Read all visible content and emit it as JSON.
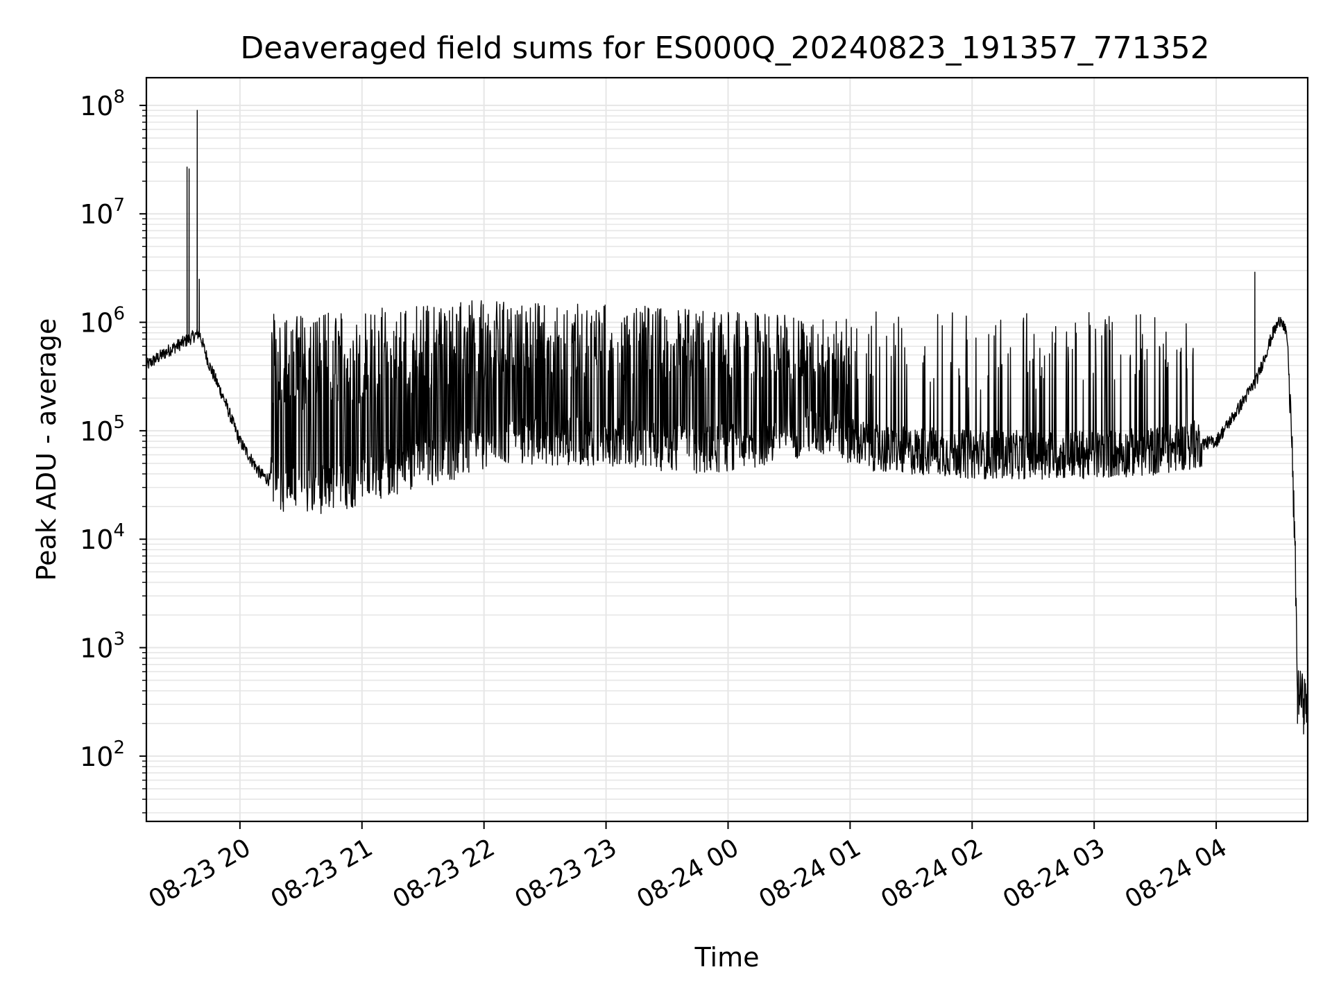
{
  "chart_data": {
    "type": "line",
    "title": "Deaveraged field sums for ES000Q_20240823_191357_771352",
    "xlabel": "Time",
    "ylabel": "Peak ADU - average",
    "yscale": "log",
    "ylim": [
      25,
      180000000
    ],
    "xlim": [
      "2024-08-23 19:14",
      "2024-08-24 04:45"
    ],
    "grid": "on",
    "legend": "none",
    "line_color": "#000000",
    "x_ticks": [
      {
        "t": "2024-08-23 20:00",
        "label": "08-23 20"
      },
      {
        "t": "2024-08-23 21:00",
        "label": "08-23 21"
      },
      {
        "t": "2024-08-23 22:00",
        "label": "08-23 22"
      },
      {
        "t": "2024-08-23 23:00",
        "label": "08-23 23"
      },
      {
        "t": "2024-08-24 00:00",
        "label": "08-24 00"
      },
      {
        "t": "2024-08-24 01:00",
        "label": "08-24 01"
      },
      {
        "t": "2024-08-24 02:00",
        "label": "08-24 02"
      },
      {
        "t": "2024-08-24 03:00",
        "label": "08-24 03"
      },
      {
        "t": "2024-08-24 04:00",
        "label": "08-24 04"
      }
    ],
    "y_ticks": [
      {
        "value": 100,
        "base": "10",
        "exp": "2"
      },
      {
        "value": 1000,
        "base": "10",
        "exp": "3"
      },
      {
        "value": 10000,
        "base": "10",
        "exp": "4"
      },
      {
        "value": 100000,
        "base": "10",
        "exp": "5"
      },
      {
        "value": 1000000,
        "base": "10",
        "exp": "6"
      },
      {
        "value": 10000000,
        "base": "10",
        "exp": "7"
      },
      {
        "value": 100000000,
        "base": "10",
        "exp": "8"
      }
    ],
    "series": [
      {
        "baseline": [
          {
            "t": "2024-08-23 19:14",
            "y": 400000
          },
          {
            "t": "2024-08-23 19:25",
            "y": 550000
          },
          {
            "t": "2024-08-23 19:35",
            "y": 700000
          },
          {
            "t": "2024-08-23 19:40",
            "y": 800000
          },
          {
            "t": "2024-08-23 19:45",
            "y": 400000
          },
          {
            "t": "2024-08-23 19:52",
            "y": 200000
          },
          {
            "t": "2024-08-23 20:00",
            "y": 80000
          },
          {
            "t": "2024-08-23 20:10",
            "y": 40000
          },
          {
            "t": "2024-08-23 20:20",
            "y": 30000
          },
          {
            "t": "2024-08-23 20:35",
            "y": 28000
          },
          {
            "t": "2024-08-23 20:50",
            "y": 30000
          },
          {
            "t": "2024-08-23 21:00",
            "y": 35000
          },
          {
            "t": "2024-08-23 21:20",
            "y": 45000
          },
          {
            "t": "2024-08-23 21:40",
            "y": 55000
          },
          {
            "t": "2024-08-23 22:00",
            "y": 70000
          },
          {
            "t": "2024-08-23 22:20",
            "y": 80000
          },
          {
            "t": "2024-08-23 22:40",
            "y": 80000
          },
          {
            "t": "2024-08-23 23:00",
            "y": 80000
          },
          {
            "t": "2024-08-23 23:20",
            "y": 75000
          },
          {
            "t": "2024-08-23 23:40",
            "y": 65000
          },
          {
            "t": "2024-08-24 00:00",
            "y": 70000
          },
          {
            "t": "2024-08-24 00:20",
            "y": 80000
          },
          {
            "t": "2024-08-24 00:40",
            "y": 100000
          },
          {
            "t": "2024-08-24 01:00",
            "y": 80000
          },
          {
            "t": "2024-08-24 01:20",
            "y": 65000
          },
          {
            "t": "2024-08-24 01:40",
            "y": 65000
          },
          {
            "t": "2024-08-24 02:00",
            "y": 60000
          },
          {
            "t": "2024-08-24 02:30",
            "y": 60000
          },
          {
            "t": "2024-08-24 03:00",
            "y": 60000
          },
          {
            "t": "2024-08-24 03:30",
            "y": 65000
          },
          {
            "t": "2024-08-24 04:00",
            "y": 80000
          },
          {
            "t": "2024-08-24 04:10",
            "y": 150000
          },
          {
            "t": "2024-08-24 04:20",
            "y": 300000
          },
          {
            "t": "2024-08-24 04:28",
            "y": 800000
          },
          {
            "t": "2024-08-24 04:32",
            "y": 1100000
          },
          {
            "t": "2024-08-24 04:35",
            "y": 700000
          },
          {
            "t": "2024-08-24 04:37",
            "y": 100000
          },
          {
            "t": "2024-08-24 04:39",
            "y": 5000
          },
          {
            "t": "2024-08-24 04:40",
            "y": 400
          },
          {
            "t": "2024-08-24 04:45",
            "y": 300
          }
        ],
        "envelope_upper": [
          {
            "t": "2024-08-23 20:15",
            "y": 1200000
          },
          {
            "t": "2024-08-23 21:00",
            "y": 1300000
          },
          {
            "t": "2024-08-23 21:30",
            "y": 1500000
          },
          {
            "t": "2024-08-23 22:00",
            "y": 1600000
          },
          {
            "t": "2024-08-23 23:00",
            "y": 1500000
          },
          {
            "t": "2024-08-24 00:00",
            "y": 1300000
          },
          {
            "t": "2024-08-24 00:55",
            "y": 1100000
          },
          {
            "t": "2024-08-24 01:15",
            "y": 1300000
          },
          {
            "t": "2024-08-24 03:50",
            "y": 1200000
          }
        ],
        "spikes": [
          {
            "t": "2024-08-23 19:34",
            "y": 27000000
          },
          {
            "t": "2024-08-23 19:35",
            "y": 26000000
          },
          {
            "t": "2024-08-23 19:39",
            "y": 90000000
          },
          {
            "t": "2024-08-23 19:40",
            "y": 2500000
          },
          {
            "t": "2024-08-24 04:19",
            "y": 2900000
          }
        ],
        "min_points": [
          {
            "t": "2024-08-24 04:40",
            "y": 200
          },
          {
            "t": "2024-08-24 04:43",
            "y": 160
          }
        ]
      }
    ]
  }
}
